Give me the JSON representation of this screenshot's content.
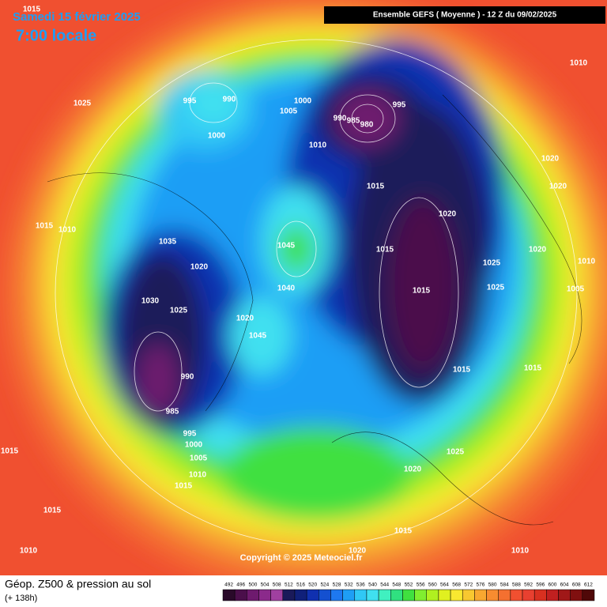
{
  "header": {
    "date": "Samedi 15 février 2025",
    "time": "7:00 locale",
    "model": "Ensemble GEFS  ( Moyenne )  -  12 Z du 09/02/2025"
  },
  "copyright": "Copyright © 2025 Meteociel.fr",
  "footer": {
    "title": "Géop. Z500 & pression au sol",
    "lead": "(+ 138h)"
  },
  "legend": {
    "values": [
      492,
      496,
      500,
      504,
      508,
      512,
      516,
      520,
      524,
      528,
      532,
      536,
      540,
      544,
      548,
      552,
      556,
      560,
      564,
      568,
      572,
      576,
      580,
      584,
      588,
      592,
      596,
      600,
      604,
      608,
      612
    ],
    "colors": [
      "#2a0a2a",
      "#4b0f4b",
      "#6e1a6e",
      "#8b2a8b",
      "#a040a0",
      "#1a1a5a",
      "#10207a",
      "#1030b0",
      "#1450d0",
      "#1e78f0",
      "#1e9ef5",
      "#30c8f5",
      "#40e0f0",
      "#40f0c0",
      "#30e080",
      "#40e040",
      "#80ee30",
      "#b0f020",
      "#e0f020",
      "#f8e830",
      "#f8c830",
      "#f8a830",
      "#f88c30",
      "#f47030",
      "#f05030",
      "#e84030",
      "#d83020",
      "#c02020",
      "#a01818",
      "#801010",
      "#500808"
    ]
  },
  "isobar_labels": [
    "1015",
    "1025",
    "995",
    "990",
    "1000",
    "1000",
    "1005",
    "990",
    "985",
    "980",
    "995",
    "1010",
    "1015",
    "1020",
    "1010",
    "1020",
    "1020",
    "1015",
    "1010",
    "1035",
    "1045",
    "1020",
    "1015",
    "1020",
    "1025",
    "1010",
    "1015",
    "1025",
    "1005",
    "1030",
    "1025",
    "1040",
    "1020",
    "1045",
    "990",
    "985",
    "995",
    "1000",
    "1005",
    "1010",
    "1015",
    "1015",
    "1015",
    "1015",
    "1025",
    "1020",
    "1015",
    "1015",
    "1010",
    "1020",
    "1010"
  ]
}
